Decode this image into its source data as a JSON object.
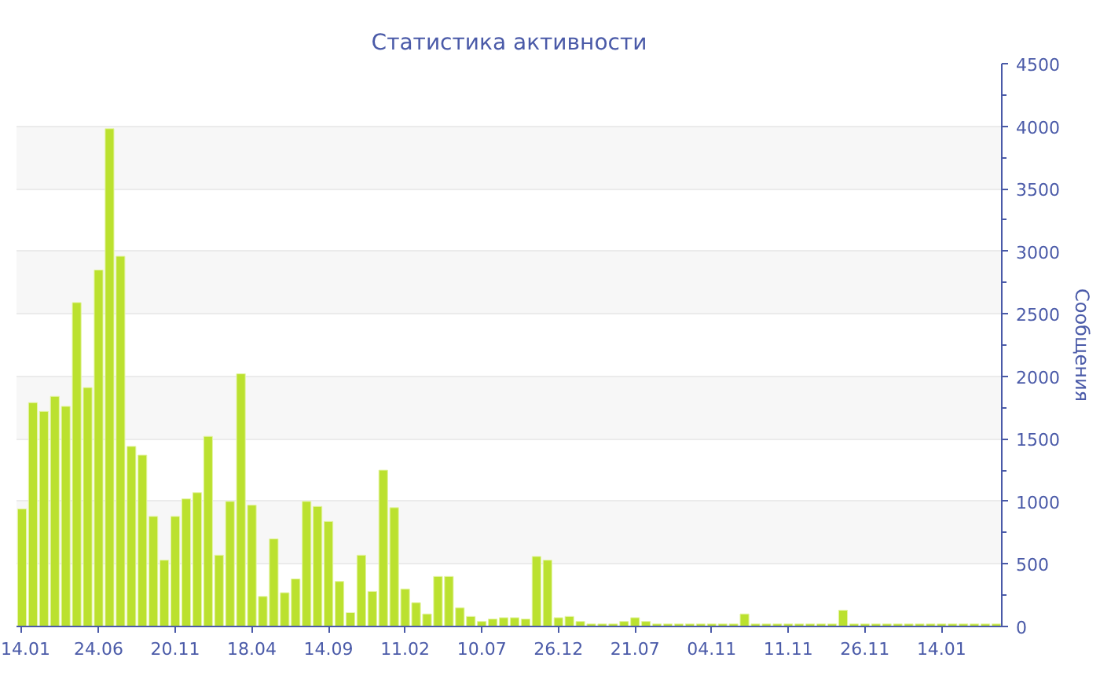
{
  "chart_data": {
    "type": "bar",
    "title": "Статистика активности",
    "ylabel": "Сообщения",
    "categories": [
      "14.01",
      null,
      null,
      null,
      null,
      null,
      null,
      "24.06",
      null,
      null,
      null,
      null,
      null,
      null,
      "20.11",
      null,
      null,
      null,
      null,
      null,
      null,
      "18.04",
      null,
      null,
      null,
      null,
      null,
      null,
      "14.09",
      null,
      null,
      null,
      null,
      null,
      null,
      "11.02",
      null,
      null,
      null,
      null,
      null,
      null,
      "10.07",
      null,
      null,
      null,
      null,
      null,
      null,
      "26.12",
      null,
      null,
      null,
      null,
      null,
      null,
      "21.07",
      null,
      null,
      null,
      null,
      null,
      null,
      "04.11",
      null,
      null,
      null,
      null,
      null,
      null,
      "11.11",
      null,
      null,
      null,
      null,
      null,
      null,
      "26.11",
      null,
      null,
      null,
      null,
      null,
      null,
      "14.01",
      null,
      null,
      null,
      null,
      null
    ],
    "values": [
      940,
      1790,
      1720,
      1840,
      1760,
      2590,
      1910,
      2850,
      3980,
      2960,
      1440,
      1370,
      880,
      530,
      880,
      1020,
      1070,
      1520,
      570,
      1000,
      2020,
      970,
      240,
      700,
      270,
      380,
      1000,
      960,
      840,
      360,
      110,
      570,
      280,
      1250,
      950,
      300,
      190,
      100,
      400,
      400,
      150,
      80,
      40,
      60,
      70,
      70,
      60,
      560,
      530,
      70,
      80,
      40,
      20,
      20,
      20,
      40,
      70,
      40,
      20,
      20,
      20,
      20,
      20,
      20,
      20,
      20,
      100,
      20,
      20,
      20,
      20,
      20,
      20,
      20,
      20,
      130,
      20,
      20,
      20,
      20,
      20,
      20,
      20,
      20,
      20,
      20,
      20,
      20,
      20,
      20
    ],
    "color": "#bbe12f",
    "ylim": [
      0,
      4500
    ],
    "yticks": [
      0,
      500,
      1000,
      1500,
      2000,
      2500,
      3000,
      3500,
      4000,
      4500
    ],
    "grid": "y"
  }
}
